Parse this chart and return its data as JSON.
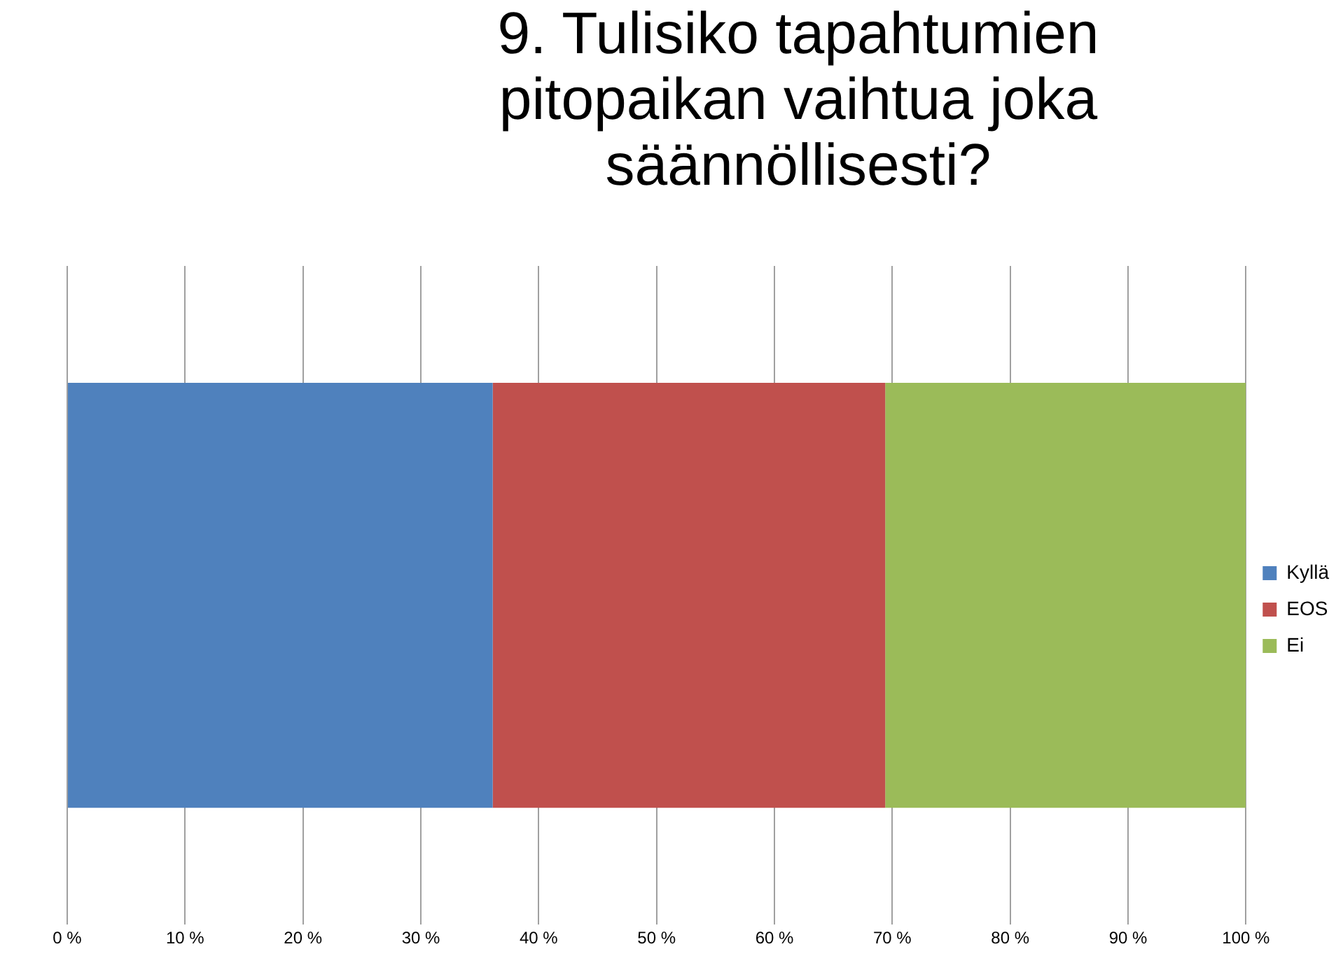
{
  "chart_data": {
    "type": "bar",
    "orientation": "horizontal",
    "stacked": true,
    "title": "9. Tulisiko tapahtumien pitopaikan vaihtua joka säännöllisesti?",
    "categories": [
      null
    ],
    "series": [
      {
        "name": "Kyllä",
        "color": "#4f81bd",
        "values": [
          36.1
        ]
      },
      {
        "name": "EOS",
        "color": "#c0504d",
        "values": [
          33.3
        ]
      },
      {
        "name": "Ei",
        "color": "#9bbb59",
        "values": [
          30.6
        ]
      }
    ],
    "xlim": [
      0,
      100
    ],
    "xticks": [
      {
        "value": 0,
        "label": "0 %"
      },
      {
        "value": 10,
        "label": "10 %"
      },
      {
        "value": 20,
        "label": "20 %"
      },
      {
        "value": 30,
        "label": "30 %"
      },
      {
        "value": 40,
        "label": "40 %"
      },
      {
        "value": 50,
        "label": "50 %"
      },
      {
        "value": 60,
        "label": "60 %"
      },
      {
        "value": 70,
        "label": "70 %"
      },
      {
        "value": 80,
        "label": "80 %"
      },
      {
        "value": 90,
        "label": "90 %"
      },
      {
        "value": 100,
        "label": "100 %"
      }
    ],
    "grid": "x",
    "legend": "right",
    "tick_labels": "x"
  }
}
